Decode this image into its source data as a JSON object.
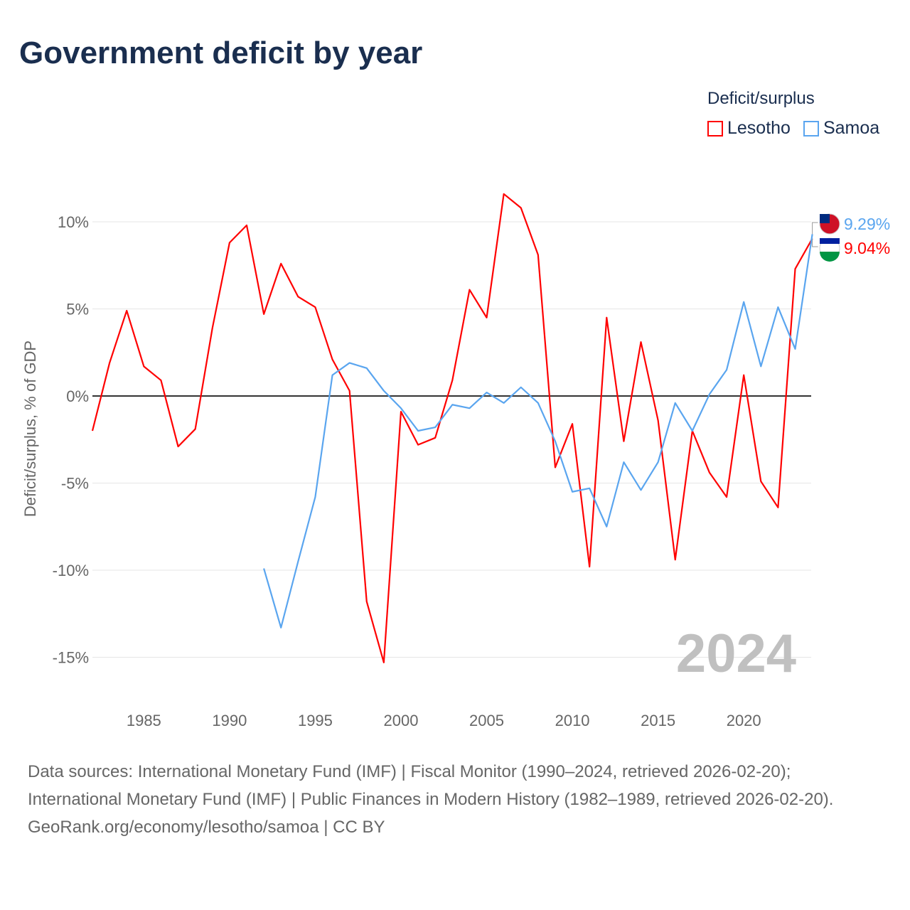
{
  "chart_data": {
    "type": "line",
    "title": "Government deficit by year",
    "ylabel": "Deficit/surplus, % of GDP",
    "xlabel": "",
    "legend_title": "Deficit/surplus",
    "ylim": [
      -17,
      13
    ],
    "xlim": [
      1982,
      2024
    ],
    "yticks": [
      10,
      5,
      0,
      -5,
      -10,
      -15
    ],
    "ytick_labels": [
      "10%",
      "5%",
      "0%",
      "-5%",
      "-10%",
      "-15%"
    ],
    "xticks": [
      1985,
      1990,
      1995,
      2000,
      2005,
      2010,
      2015,
      2020
    ],
    "xtick_labels": [
      "1985",
      "1990",
      "1995",
      "2000",
      "2005",
      "2010",
      "2015",
      "2020"
    ],
    "year_label": "2024",
    "series": [
      {
        "name": "Lesotho",
        "color": "#ff0000",
        "end_label": "9.04%",
        "start": 1982,
        "values": [
          -2.0,
          1.9,
          4.9,
          1.7,
          0.9,
          -2.9,
          -1.9,
          3.9,
          8.8,
          9.8,
          4.7,
          7.6,
          5.7,
          5.1,
          2.1,
          0.3,
          -11.8,
          -15.3,
          -0.9,
          -2.8,
          -2.4,
          0.9,
          6.1,
          4.5,
          11.6,
          10.8,
          8.1,
          -4.1,
          -1.6,
          -9.8,
          4.5,
          -2.6,
          3.1,
          -1.4,
          -9.4,
          -2.0,
          -4.4,
          -5.8,
          1.2,
          -4.9,
          -6.4,
          7.3,
          9.04
        ]
      },
      {
        "name": "Samoa",
        "color": "#5aa5ef",
        "end_label": "9.29%",
        "start": 1992,
        "values": [
          -9.9,
          -13.3,
          -9.5,
          -5.8,
          1.2,
          1.9,
          1.6,
          0.3,
          -0.7,
          -2.0,
          -1.8,
          -0.5,
          -0.7,
          0.2,
          -0.4,
          0.5,
          -0.4,
          -2.6,
          -5.5,
          -5.3,
          -7.5,
          -3.8,
          -5.4,
          -3.8,
          -0.4,
          -2.0,
          0.1,
          1.5,
          5.4,
          1.7,
          5.1,
          2.7,
          9.29
        ]
      }
    ]
  },
  "footer": {
    "sources": "Data sources: International Monetary Fund (IMF) | Fiscal Monitor (1990–2024, retrieved 2026-02-20); International Monetary Fund (IMF) | Public Finances in Modern History (1982–1989, retrieved 2026-02-20).",
    "credit": "GeoRank.org/economy/lesotho/samoa | CC BY"
  }
}
